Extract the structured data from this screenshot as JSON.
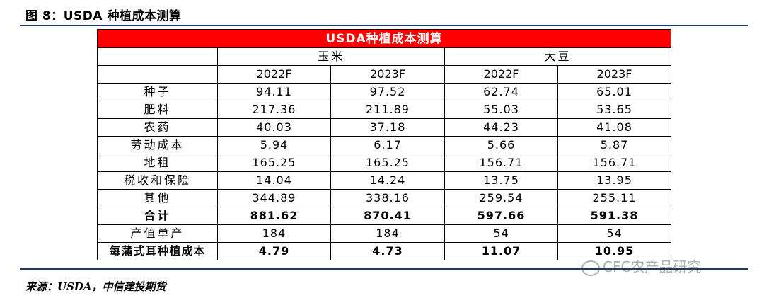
{
  "figure": {
    "title": "图 8：USDA 种植成本测算",
    "source": "来源：USDA，中信建投期货"
  },
  "table": {
    "header": "USDA种植成本测算",
    "groups": [
      "玉米",
      "大豆"
    ],
    "years": [
      "2022F",
      "2023F",
      "2022F",
      "2023F"
    ],
    "rows": [
      {
        "label": "种子",
        "values": [
          "94.11",
          "97.52",
          "62.74",
          "65.01"
        ]
      },
      {
        "label": "肥料",
        "values": [
          "217.36",
          "211.89",
          "55.03",
          "53.65"
        ]
      },
      {
        "label": "农药",
        "values": [
          "40.03",
          "37.18",
          "44.23",
          "41.08"
        ]
      },
      {
        "label": "劳动成本",
        "values": [
          "5.94",
          "6.17",
          "5.66",
          "5.87"
        ]
      },
      {
        "label": "地租",
        "values": [
          "165.25",
          "165.25",
          "156.71",
          "156.71"
        ]
      },
      {
        "label": "税收和保险",
        "values": [
          "14.04",
          "14.24",
          "13.75",
          "13.95"
        ]
      },
      {
        "label": "其他",
        "values": [
          "344.89",
          "338.16",
          "259.54",
          "255.11"
        ]
      },
      {
        "label": "合计",
        "values": [
          "881.62",
          "870.41",
          "597.66",
          "591.38"
        ]
      },
      {
        "label": "产值单产",
        "values": [
          "184",
          "184",
          "54",
          "54"
        ]
      },
      {
        "label": "每蒲式耳种植成本",
        "values": [
          "4.79",
          "4.73",
          "11.07",
          "10.95"
        ]
      }
    ]
  },
  "watermark": {
    "text": "CFC农产品研究",
    "icon": "wechat-icon"
  },
  "colors": {
    "header_bg": "#ff0000",
    "header_text": "#ffffff",
    "rule": "#1f3a70"
  }
}
